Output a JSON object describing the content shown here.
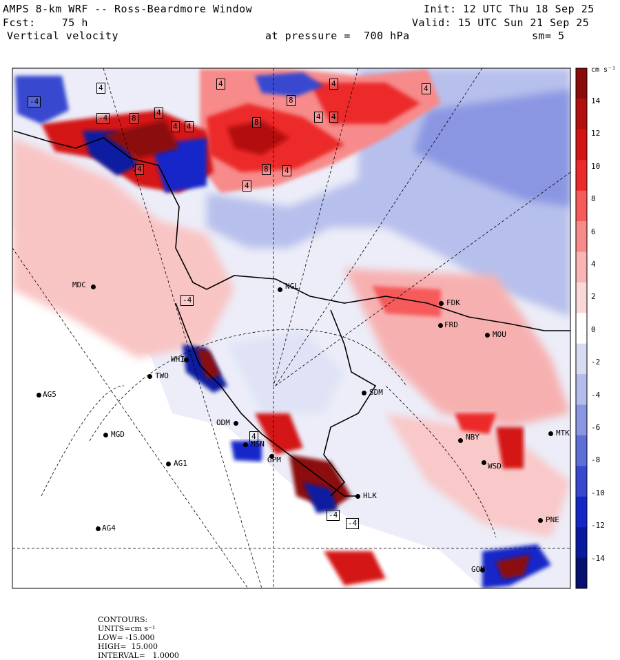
{
  "header": {
    "title": "AMPS 8-km WRF -- Ross-Beardmore Window",
    "forecast": "Fcst:    75 h",
    "variable": "Vertical velocity",
    "level": "at pressure =  700 hPa",
    "init": "Init: 12 UTC Thu 18 Sep 25",
    "valid": "Valid: 15 UTC Sun 21 Sep 25",
    "smoothing": "sm= 5"
  },
  "colorbar": {
    "units_label": "cm s⁻¹",
    "ticks": [
      "14",
      "12",
      "10",
      "8",
      "6",
      "4",
      "2",
      "0",
      "-2",
      "-4",
      "-6",
      "-8",
      "-10",
      "-12",
      "-14"
    ],
    "colors": [
      "#8b0a0a",
      "#b30f0f",
      "#d41414",
      "#ec2a2a",
      "#f65a5a",
      "#f78a8a",
      "#f9b4b4",
      "#fbd8d8",
      "#ffffff",
      "#d8dcf3",
      "#b4bcec",
      "#8a96e2",
      "#5f6fd8",
      "#3848d0",
      "#1428c8",
      "#0a1aa0",
      "#061070"
    ]
  },
  "contour_labels": [
    "4",
    "4",
    "4",
    "4",
    "8",
    "8",
    "4",
    "4",
    "4",
    "4",
    "4",
    "8",
    "8",
    "4",
    "4",
    "4",
    "-4",
    "-4",
    "-4",
    "4",
    "-4",
    "-4"
  ],
  "stations": [
    {
      "id": "MDC"
    },
    {
      "id": "NGL"
    },
    {
      "id": "FDK"
    },
    {
      "id": "FRD"
    },
    {
      "id": "MOU"
    },
    {
      "id": "TWO"
    },
    {
      "id": "AG5"
    },
    {
      "id": "SDM"
    },
    {
      "id": "MGD"
    },
    {
      "id": "AG1"
    },
    {
      "id": "NBY"
    },
    {
      "id": "MTK"
    },
    {
      "id": "WSD"
    },
    {
      "id": "HLK"
    },
    {
      "id": "AG4"
    },
    {
      "id": "PNE"
    },
    {
      "id": "GOM"
    },
    {
      "id": "MSN"
    },
    {
      "id": "GPM"
    },
    {
      "id": "WHI"
    },
    {
      "id": "ODM"
    }
  ],
  "footer": {
    "contours": "CONTOURS:",
    "units": "UNITS=cm s⁻¹",
    "low": "LOW= -15.000",
    "high": "HIGH=  15.000",
    "interval": "INTERVAL=   1.0000"
  }
}
